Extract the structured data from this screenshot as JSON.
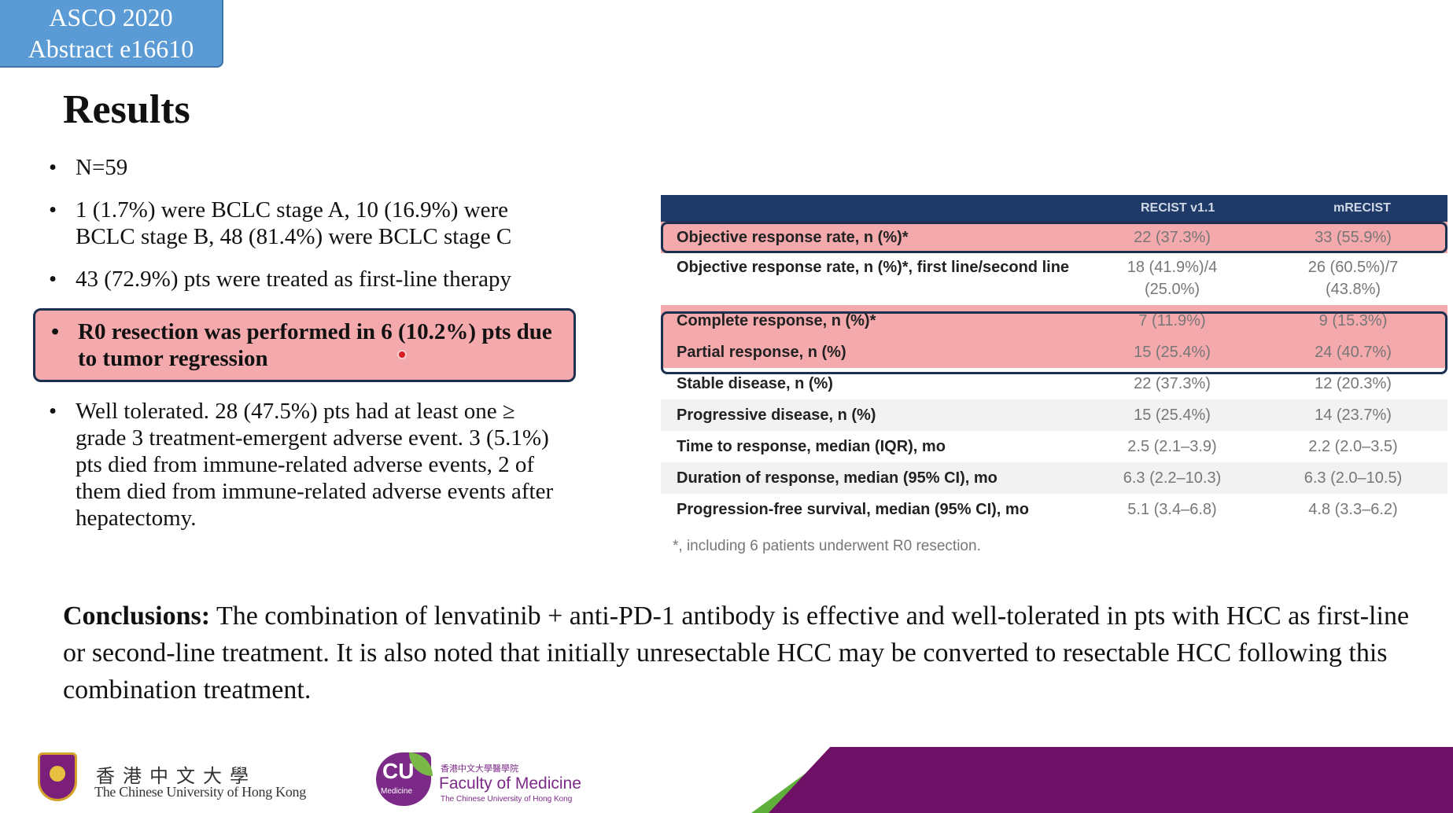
{
  "badge": {
    "line1": "ASCO 2020",
    "line2": "Abstract e16610"
  },
  "title": "Results",
  "bullets": [
    {
      "text": "N=59"
    },
    {
      "text": "1 (1.7%) were BCLC stage A, 10 (16.9%) were BCLC stage B, 48 (81.4%) were BCLC stage C"
    },
    {
      "text": "43 (72.9%) pts were treated as first-line therapy"
    },
    {
      "text": "R0 resection was performed in 6 (10.2%) pts due to tumor regression"
    },
    {
      "text": "Well tolerated. 28 (47.5%) pts had at least one ≥ grade 3 treatment-emergent adverse event. 3 (5.1%) pts died from immune-related adverse events, 2 of them died from immune-related adverse events after hepatectomy."
    }
  ],
  "bullet_glyph": "•",
  "table": {
    "headers": [
      "",
      "RECIST v1.1",
      "mRECIST"
    ],
    "rows": [
      {
        "label": "Objective response rate, n (%)*",
        "recist": "22 (37.3%)",
        "mrecist": "33 (55.9%)"
      },
      {
        "label": "Objective response rate, n (%)*, first line/second line",
        "recist": "18 (41.9%)/4 (25.0%)",
        "mrecist": "26 (60.5%)/7 (43.8%)"
      },
      {
        "label": "Complete response, n (%)*",
        "recist": "7 (11.9%)",
        "mrecist": "9 (15.3%)"
      },
      {
        "label": "Partial response, n (%)",
        "recist": "15 (25.4%)",
        "mrecist": "24 (40.7%)"
      },
      {
        "label": "Stable disease, n (%)",
        "recist": "22 (37.3%)",
        "mrecist": "12 (20.3%)"
      },
      {
        "label": "Progressive disease, n (%)",
        "recist": "15 (25.4%)",
        "mrecist": "14 (23.7%)"
      },
      {
        "label": "Time to response, median (IQR), mo",
        "recist": "2.5 (2.1–3.9)",
        "mrecist": "2.2 (2.0–3.5)"
      },
      {
        "label": "Duration of response, median (95% CI), mo",
        "recist": "6.3 (2.2–10.3)",
        "mrecist": "6.3 (2.0–10.5)"
      },
      {
        "label": "Progression-free survival, median (95% CI), mo",
        "recist": "5.1 (3.4–6.8)",
        "mrecist": "4.8 (3.3–6.2)"
      }
    ],
    "footnote": "*, including 6 patients underwent R0 resection."
  },
  "conclusions": {
    "lead": "Conclusions:",
    "text": " The combination of lenvatinib + anti-PD-1 antibody is effective and well-tolerated in pts with HCC as first-line or second-line treatment. It is also noted that initially unresectable HCC may be converted to resectable HCC following this combination treatment."
  },
  "footer": {
    "cuhk_zh": "香港中文大學",
    "cuhk_en": "The Chinese University of Hong Kong",
    "cu_logo": "CU",
    "cu_logo_sub": "Medicine",
    "fom_zh": "香港中文大學醫學院",
    "fom_en": "Faculty of Medicine",
    "fom_sub": "The Chinese University of Hong Kong"
  },
  "colors": {
    "badge": "#5b9bd5",
    "table_header": "#1f3a66",
    "highlight_fill": "#f4a9ad",
    "highlight_border": "#1c2f4f",
    "footer_purple": "#6d1066",
    "footer_green": "#5fb03a"
  }
}
